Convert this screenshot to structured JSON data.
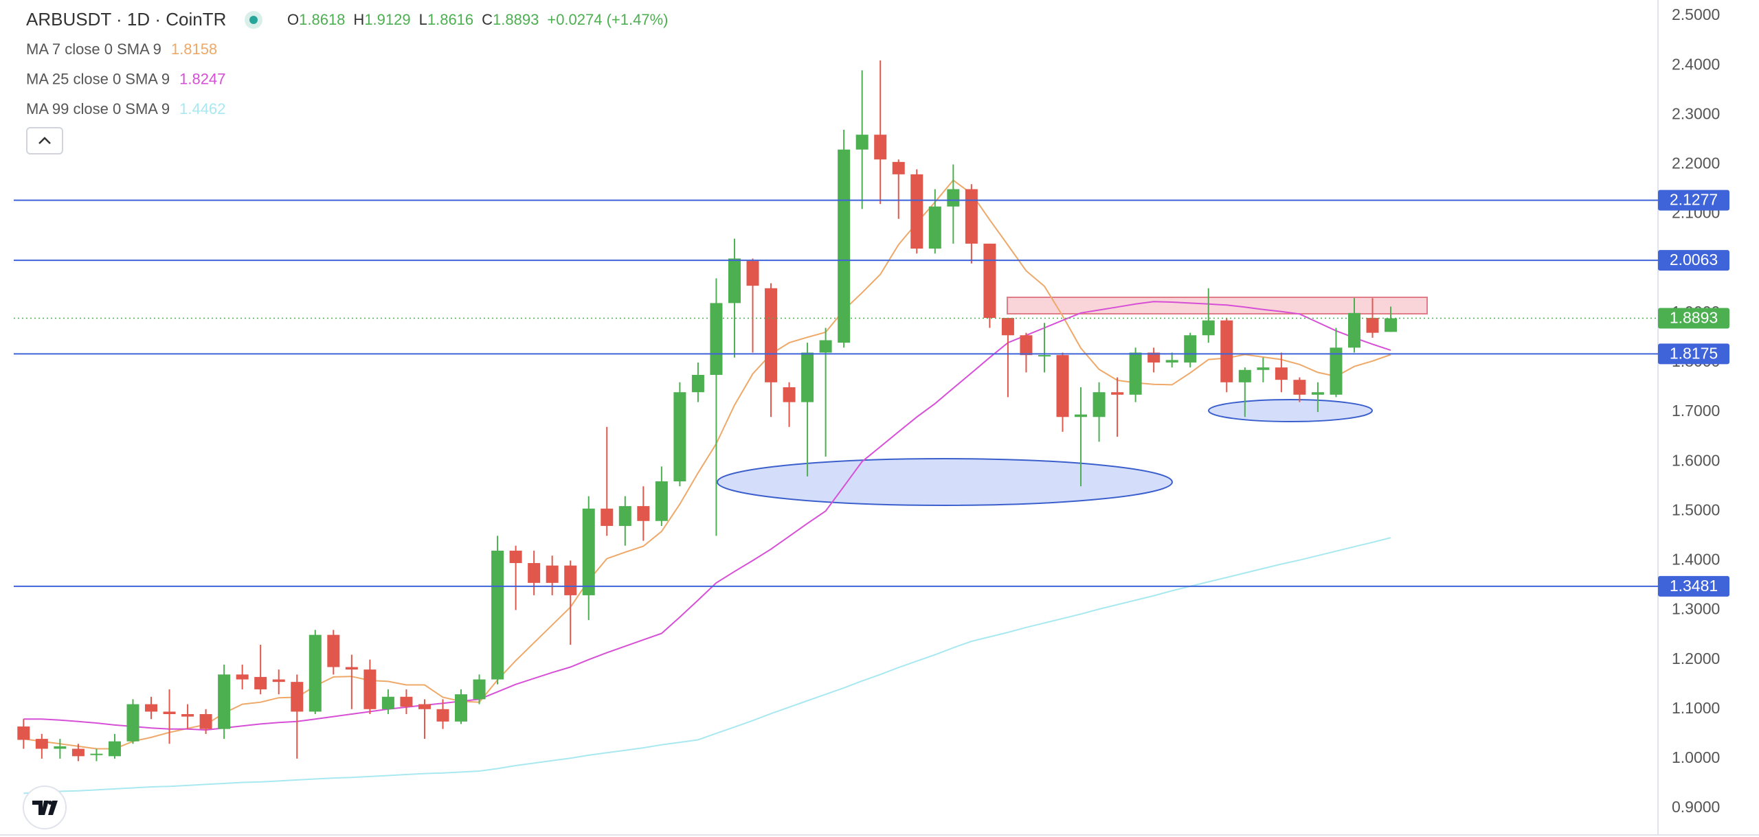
{
  "chart_data": {
    "type": "candlestick",
    "title": "ARBUSDT · 1D · CoinTR",
    "ohlc": [
      {
        "label": "O",
        "value": 1.8618
      },
      {
        "label": "H",
        "value": 1.9129
      },
      {
        "label": "L",
        "value": 1.8616
      },
      {
        "label": "C",
        "value": 1.8893
      }
    ],
    "change": "+0.0274 (+1.47%)",
    "up_color": "#4caf50",
    "down_color": "#e2574c",
    "ylim": [
      0.846,
      2.532
    ],
    "yticks": [
      {
        "value": 0.9,
        "label": "0.9000"
      },
      {
        "value": 1.0,
        "label": "1.0000"
      },
      {
        "value": 1.1,
        "label": "1.1000"
      },
      {
        "value": 1.2,
        "label": "1.2000"
      },
      {
        "value": 1.3,
        "label": "1.3000"
      },
      {
        "value": 1.4,
        "label": "1.4000"
      },
      {
        "value": 1.5,
        "label": "1.5000"
      },
      {
        "value": 1.6,
        "label": "1.6000"
      },
      {
        "value": 1.7,
        "label": "1.7000"
      },
      {
        "value": 1.8,
        "label": "1.8000"
      },
      {
        "value": 1.9,
        "label": "1.9000"
      },
      {
        "value": 2.0,
        "label": "2.0000"
      },
      {
        "value": 2.1,
        "label": "2.1000"
      },
      {
        "value": 2.2,
        "label": "2.2000"
      },
      {
        "value": 2.3,
        "label": "2.3000"
      },
      {
        "value": 2.4,
        "label": "2.4000"
      },
      {
        "value": 2.5,
        "label": "2.5000"
      }
    ],
    "grid": false,
    "candles": {
      "open": [
        1.065,
        1.04,
        1.02,
        1.02,
        1.01,
        1.005,
        1.035,
        1.11,
        1.095,
        1.09,
        1.09,
        1.06,
        1.17,
        1.165,
        1.16,
        1.155,
        1.095,
        1.25,
        1.185,
        1.18,
        1.1,
        1.125,
        1.11,
        1.1,
        1.075,
        1.12,
        1.16,
        1.42,
        1.395,
        1.39,
        1.39,
        1.33,
        1.505,
        1.47,
        1.51,
        1.48,
        1.56,
        1.74,
        1.775,
        1.92,
        2.005,
        1.95,
        1.75,
        1.72,
        1.82,
        1.84,
        2.23,
        2.26,
        2.205,
        2.18,
        2.03,
        2.115,
        2.15,
        2.04,
        1.89,
        1.855,
        1.815,
        1.815,
        1.69,
        1.69,
        1.74,
        1.735,
        1.82,
        1.8,
        1.8,
        1.855,
        1.885,
        1.76,
        1.785,
        1.79,
        1.765,
        1.735,
        1.735,
        1.83,
        1.89,
        1.8618
      ],
      "high": [
        1.08,
        1.05,
        1.04,
        1.03,
        1.02,
        1.05,
        1.12,
        1.125,
        1.14,
        1.11,
        1.1,
        1.19,
        1.19,
        1.23,
        1.18,
        1.17,
        1.26,
        1.26,
        1.21,
        1.2,
        1.14,
        1.14,
        1.12,
        1.12,
        1.14,
        1.17,
        1.45,
        1.43,
        1.42,
        1.41,
        1.4,
        1.53,
        1.67,
        1.53,
        1.55,
        1.59,
        1.76,
        1.8,
        1.97,
        2.05,
        2.01,
        1.96,
        1.76,
        1.84,
        1.87,
        2.27,
        2.39,
        2.41,
        2.21,
        2.19,
        2.15,
        2.2,
        2.16,
        2.04,
        1.89,
        1.86,
        1.88,
        1.82,
        1.75,
        1.76,
        1.77,
        1.83,
        1.83,
        1.82,
        1.86,
        1.95,
        1.89,
        1.79,
        1.81,
        1.82,
        1.77,
        1.76,
        1.87,
        1.93,
        1.93,
        1.9129
      ],
      "low": [
        1.02,
        1.0,
        1.0,
        0.995,
        0.995,
        1.0,
        1.03,
        1.08,
        1.03,
        1.06,
        1.05,
        1.04,
        1.14,
        1.13,
        1.13,
        1.0,
        1.09,
        1.17,
        1.1,
        1.09,
        1.09,
        1.09,
        1.04,
        1.06,
        1.07,
        1.11,
        1.15,
        1.3,
        1.33,
        1.33,
        1.23,
        1.28,
        1.45,
        1.43,
        1.44,
        1.47,
        1.55,
        1.72,
        1.45,
        1.81,
        1.82,
        1.69,
        1.67,
        1.57,
        1.61,
        1.83,
        2.11,
        2.12,
        2.09,
        2.02,
        2.02,
        2.04,
        2.0,
        1.87,
        1.73,
        1.78,
        1.78,
        1.66,
        1.55,
        1.64,
        1.65,
        1.72,
        1.78,
        1.79,
        1.79,
        1.84,
        1.74,
        1.69,
        1.76,
        1.74,
        1.72,
        1.7,
        1.73,
        1.82,
        1.85,
        1.8616
      ],
      "close": [
        1.038,
        1.02,
        1.025,
        1.005,
        1.01,
        1.035,
        1.11,
        1.095,
        1.09,
        1.085,
        1.06,
        1.17,
        1.16,
        1.14,
        1.155,
        1.095,
        1.25,
        1.185,
        1.18,
        1.1,
        1.125,
        1.105,
        1.1,
        1.075,
        1.13,
        1.16,
        1.42,
        1.395,
        1.355,
        1.355,
        1.33,
        1.505,
        1.47,
        1.51,
        1.48,
        1.56,
        1.74,
        1.775,
        1.92,
        2.01,
        1.955,
        1.76,
        1.72,
        1.82,
        1.845,
        2.23,
        2.26,
        2.21,
        2.18,
        2.03,
        2.115,
        2.15,
        2.04,
        1.89,
        1.855,
        1.815,
        1.815,
        1.69,
        1.695,
        1.74,
        1.735,
        1.82,
        1.8,
        1.805,
        1.855,
        1.885,
        1.76,
        1.785,
        1.79,
        1.765,
        1.735,
        1.74,
        1.83,
        1.9,
        1.86,
        1.8893
      ]
    },
    "indicators": [
      {
        "name": "MA 7 close 0 SMA 9",
        "value": 1.8158,
        "color": "#eea868",
        "values": [
          1.04,
          1.035,
          1.03,
          1.025,
          1.02,
          1.02,
          1.035,
          1.043,
          1.053,
          1.061,
          1.069,
          1.092,
          1.11,
          1.114,
          1.123,
          1.124,
          1.147,
          1.165,
          1.166,
          1.158,
          1.156,
          1.149,
          1.149,
          1.124,
          1.116,
          1.114,
          1.159,
          1.198,
          1.234,
          1.27,
          1.306,
          1.36,
          1.404,
          1.417,
          1.429,
          1.459,
          1.514,
          1.577,
          1.636,
          1.714,
          1.777,
          1.817,
          1.84,
          1.851,
          1.861,
          1.906,
          1.941,
          1.978,
          2.038,
          2.082,
          2.124,
          2.168,
          2.141,
          2.088,
          2.037,
          1.985,
          1.954,
          1.894,
          1.829,
          1.786,
          1.764,
          1.759,
          1.756,
          1.755,
          1.779,
          1.806,
          1.809,
          1.816,
          1.811,
          1.806,
          1.796,
          1.78,
          1.772,
          1.792,
          1.803,
          1.8158
        ]
      },
      {
        "name": "MA 25 close 0 SMA 9",
        "value": 1.8247,
        "color": "#d64fd6",
        "values": [
          1.08,
          1.08,
          1.078,
          1.075,
          1.072,
          1.068,
          1.065,
          1.062,
          1.06,
          1.06,
          1.058,
          1.062,
          1.066,
          1.07,
          1.073,
          1.075,
          1.08,
          1.085,
          1.09,
          1.095,
          1.1,
          1.104,
          1.108,
          1.112,
          1.116,
          1.12,
          1.135,
          1.15,
          1.162,
          1.174,
          1.185,
          1.2,
          1.214,
          1.227,
          1.24,
          1.253,
          1.286,
          1.32,
          1.355,
          1.378,
          1.4,
          1.423,
          1.449,
          1.475,
          1.5,
          1.55,
          1.6,
          1.63,
          1.66,
          1.69,
          1.717,
          1.748,
          1.779,
          1.81,
          1.84,
          1.855,
          1.87,
          1.885,
          1.9,
          1.906,
          1.912,
          1.918,
          1.923,
          1.922,
          1.92,
          1.918,
          1.916,
          1.912,
          1.907,
          1.903,
          1.898,
          1.881,
          1.864,
          1.85,
          1.837,
          1.8247
        ]
      },
      {
        "name": "MA 99 close 0 SMA 9",
        "value": 1.4462,
        "color": "#a8e8f0",
        "values": [
          0.93,
          0.932,
          0.934,
          0.935,
          0.937,
          0.939,
          0.941,
          0.943,
          0.944,
          0.946,
          0.948,
          0.95,
          0.952,
          0.953,
          0.955,
          0.957,
          0.959,
          0.961,
          0.962,
          0.964,
          0.966,
          0.968,
          0.97,
          0.971,
          0.973,
          0.975,
          0.98,
          0.986,
          0.991,
          0.996,
          1.001,
          1.007,
          1.012,
          1.017,
          1.022,
          1.028,
          1.033,
          1.038,
          1.051,
          1.064,
          1.077,
          1.091,
          1.104,
          1.117,
          1.13,
          1.143,
          1.157,
          1.17,
          1.184,
          1.197,
          1.21,
          1.224,
          1.237,
          1.246,
          1.255,
          1.265,
          1.274,
          1.283,
          1.292,
          1.302,
          1.311,
          1.32,
          1.329,
          1.339,
          1.348,
          1.357,
          1.366,
          1.375,
          1.384,
          1.393,
          1.401,
          1.41,
          1.419,
          1.428,
          1.437,
          1.4462
        ]
      }
    ],
    "levels": [
      {
        "value": 2.1277,
        "color": "#3f63d8"
      },
      {
        "value": 2.0063,
        "color": "#3f63d8"
      },
      {
        "value": 1.8175,
        "color": "#3f63d8"
      },
      {
        "value": 1.3481,
        "color": "#3f63d8"
      }
    ],
    "last_price": {
      "value": 1.8893,
      "color": "#4caf50"
    }
  }
}
